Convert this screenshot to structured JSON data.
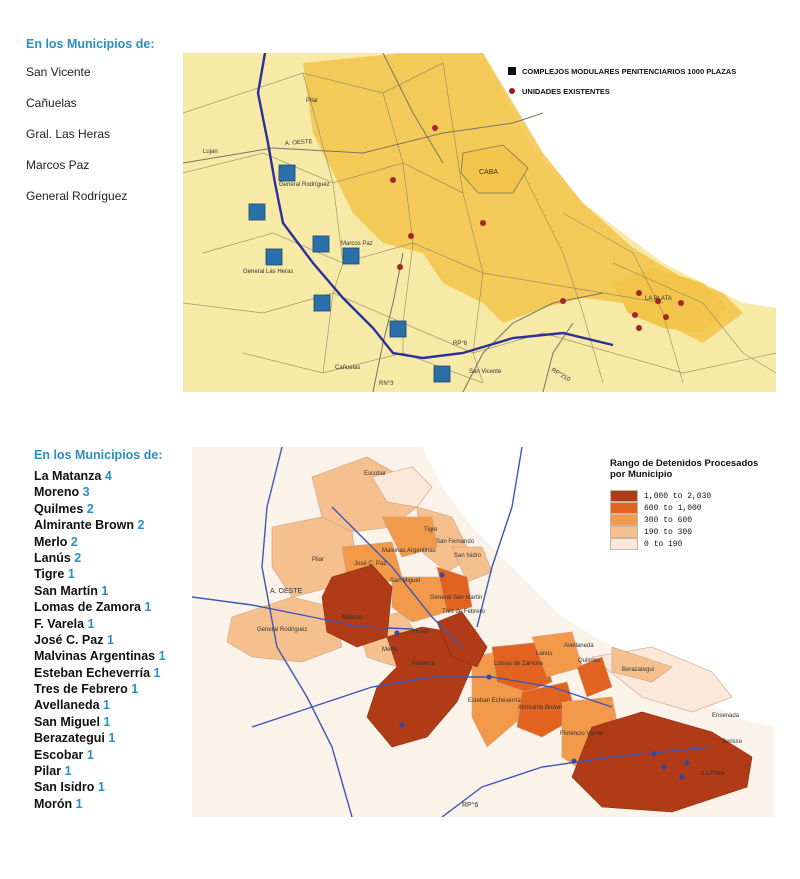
{
  "top_section": {
    "heading": "En los Municipios de:",
    "municipalities": [
      "San Vicente",
      "Cañuelas",
      "Gral. Las Heras",
      "Marcos Paz",
      "General Rodríguez"
    ],
    "legend": {
      "modular": "COMPLEJOS MODULARES PENITENCIARIOS 1000 PLAZAS",
      "existing": "UNIDADES EXISTENTES"
    },
    "map_labels": {
      "pilar": "Pilar",
      "lujan": "Lujan",
      "a_oeste": "A. OESTE",
      "caba": "CABA",
      "general_rodriguez": "General Rodríguez",
      "marcos_paz": "Marcos Paz",
      "general_las_heras": "General Las Heras",
      "la_plata": "LA PLATA",
      "rp6": "RP°6",
      "rp210": "RP°210",
      "canuelas": "Cañuelas",
      "rn3": "RN°3",
      "san_vicente": "San Vicente"
    },
    "colors": {
      "base": "#f7e9a6",
      "urban": "#f2c44a",
      "route": "#2b2f9c",
      "complex": "#2a6fa8",
      "unit": "#a3262a"
    }
  },
  "bottom_section": {
    "heading": "En los Municipios de:",
    "municipalities": [
      {
        "name": "La Matanza",
        "count": "4"
      },
      {
        "name": "Moreno",
        "count": "3"
      },
      {
        "name": "Quilmes",
        "count": "2"
      },
      {
        "name": "Almirante Brown",
        "count": "2"
      },
      {
        "name": "Merlo",
        "count": "2"
      },
      {
        "name": "Lanús",
        "count": "2"
      },
      {
        "name": "Tigre",
        "count": "1"
      },
      {
        "name": "San Martín",
        "count": "1"
      },
      {
        "name": "Lomas de Zamora",
        "count": "1"
      },
      {
        "name": "F. Varela",
        "count": "1"
      },
      {
        "name": "José C. Paz",
        "count": "1"
      },
      {
        "name": "Malvinas Argentinas",
        "count": "1"
      },
      {
        "name": "Esteban Echeverría",
        "count": "1"
      },
      {
        "name": "Tres de Febrero",
        "count": "1"
      },
      {
        "name": "Avellaneda",
        "count": "1"
      },
      {
        "name": "San Miguel",
        "count": "1"
      },
      {
        "name": "Berazategui",
        "count": "1"
      },
      {
        "name": "Escobar",
        "count": "1"
      },
      {
        "name": "Pilar",
        "count": "1"
      },
      {
        "name": "San Isidro",
        "count": "1"
      },
      {
        "name": "Morón",
        "count": "1"
      }
    ],
    "legend": {
      "title": "Rango de Detenidos Procesados por Municipio",
      "ranges": [
        {
          "label": "1,000 to 2,030",
          "color": "#b13a17"
        },
        {
          "label": "600 to 1,000",
          "color": "#e2621f"
        },
        {
          "label": "300 to 600",
          "color": "#f29a4a"
        },
        {
          "label": "190 to 300",
          "color": "#f6c08e"
        },
        {
          "label": "0 to 190",
          "color": "#fbe8d8"
        }
      ]
    },
    "map_labels": {
      "escobar": "Escobar",
      "tigre": "Tigre",
      "san_fernando": "San Fernando",
      "san_isidro": "San Isidro",
      "malvinas": "Malvinas Argentinas",
      "jose_c_paz": "José C. Paz",
      "san_miguel": "San Miguel",
      "san_martin": "General San Martín",
      "tres_de_febrero": "Tres de Febrero",
      "pilar": "Pilar",
      "a_oeste": "A. OESTE",
      "moreno": "Moreno",
      "moron": "Morón",
      "general_rodriguez": "General Rodriguez",
      "merlo": "Merlo",
      "matanza": "Matanza",
      "lanus": "Lanús",
      "lomas": "Lomas de Zamora",
      "avellaneda": "Avellaneda",
      "quilmes": "Quilmes",
      "esteban": "Esteban Echeverría",
      "almirante": "Almirante Brown",
      "berazategui": "Berazategui",
      "varela": "Florencio Varela",
      "la_plata": "La Plata",
      "ensenada": "Ensenada",
      "berisso": "Berisso",
      "rp6": "RP°6"
    }
  }
}
